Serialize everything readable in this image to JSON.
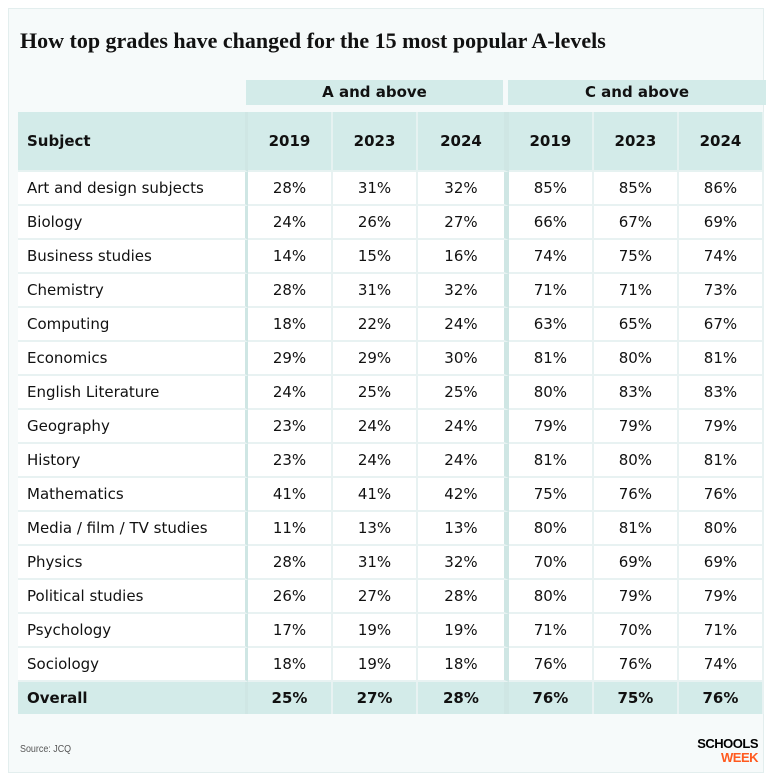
{
  "title": "How top grades have changed for the 15 most popular A-levels",
  "groups": [
    "A and above",
    "C and above"
  ],
  "source": "Source: JCQ",
  "logo": {
    "line1": "SCHOOLS",
    "line2": "WEEK"
  },
  "colors": {
    "header_bg": "#d3ebe9",
    "logo_accent": "#ff5a1f"
  },
  "chart_data": {
    "type": "table",
    "title": "How top grades have changed for the 15 most popular A-levels",
    "columns": [
      "Subject",
      "2019",
      "2023",
      "2024",
      "2019",
      "2023",
      "2024"
    ],
    "rows": [
      [
        "Art and design subjects",
        "28%",
        "31%",
        "32%",
        "85%",
        "85%",
        "86%"
      ],
      [
        "Biology",
        "24%",
        "26%",
        "27%",
        "66%",
        "67%",
        "69%"
      ],
      [
        "Business studies",
        "14%",
        "15%",
        "16%",
        "74%",
        "75%",
        "74%"
      ],
      [
        "Chemistry",
        "28%",
        "31%",
        "32%",
        "71%",
        "71%",
        "73%"
      ],
      [
        "Computing",
        "18%",
        "22%",
        "24%",
        "63%",
        "65%",
        "67%"
      ],
      [
        "Economics",
        "29%",
        "29%",
        "30%",
        "81%",
        "80%",
        "81%"
      ],
      [
        "English Literature",
        "24%",
        "25%",
        "25%",
        "80%",
        "83%",
        "83%"
      ],
      [
        "Geography",
        "23%",
        "24%",
        "24%",
        "79%",
        "79%",
        "79%"
      ],
      [
        "History",
        "23%",
        "24%",
        "24%",
        "81%",
        "80%",
        "81%"
      ],
      [
        "Mathematics",
        "41%",
        "41%",
        "42%",
        "75%",
        "76%",
        "76%"
      ],
      [
        "Media / film / TV studies",
        "11%",
        "13%",
        "13%",
        "80%",
        "81%",
        "80%"
      ],
      [
        "Physics",
        "28%",
        "31%",
        "32%",
        "70%",
        "69%",
        "69%"
      ],
      [
        "Political studies",
        "26%",
        "27%",
        "28%",
        "80%",
        "79%",
        "79%"
      ],
      [
        "Psychology",
        "17%",
        "19%",
        "19%",
        "71%",
        "70%",
        "71%"
      ],
      [
        "Sociology",
        "18%",
        "19%",
        "18%",
        "76%",
        "76%",
        "74%"
      ],
      [
        "Overall",
        "25%",
        "27%",
        "28%",
        "76%",
        "75%",
        "76%"
      ]
    ]
  }
}
